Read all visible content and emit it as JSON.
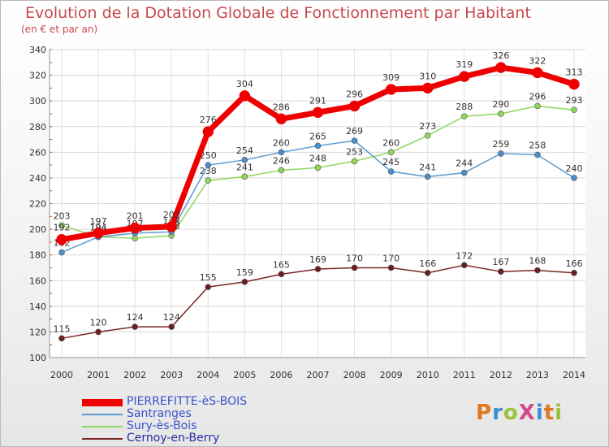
{
  "title": "Evolution de la Dotation Globale de Fonctionnement par Habitant",
  "subtitle": "(en € et par an)",
  "logo": {
    "text": "ProXiti",
    "colors": [
      "#e07820",
      "#3a8fd0",
      "#9bc03c",
      "#d04a8c",
      "#3a8fd0",
      "#e07820",
      "#9bc03c"
    ]
  },
  "chart_data": {
    "type": "line",
    "x": [
      2000,
      2001,
      2002,
      2003,
      2004,
      2005,
      2006,
      2007,
      2008,
      2009,
      2010,
      2011,
      2012,
      2013,
      2014
    ],
    "ylim": [
      100,
      340
    ],
    "yticks": [
      100,
      120,
      140,
      160,
      180,
      200,
      220,
      240,
      260,
      280,
      300,
      320,
      340
    ],
    "grid": true,
    "legend": "bottom-left",
    "series": [
      {
        "name": "Cernoy-en-Berry",
        "color": "#7b2525",
        "values": [
          115,
          120,
          124,
          124,
          155,
          159,
          165,
          169,
          170,
          170,
          166,
          172,
          167,
          168,
          166
        ]
      },
      {
        "name": "Sury-ès-Bois",
        "color": "#8fd65c",
        "values": [
          203,
          194,
          193,
          195,
          238,
          241,
          246,
          248,
          253,
          260,
          273,
          288,
          290,
          296,
          293
        ]
      },
      {
        "name": "Santranges",
        "color": "#5b9bd0",
        "values": [
          182,
          194,
          197,
          198,
          250,
          254,
          260,
          265,
          269,
          245,
          241,
          244,
          259,
          258,
          240
        ]
      },
      {
        "name": "PIERREFITTE-èS-BOIS",
        "color": "#ee0000",
        "values": [
          192,
          197,
          201,
          202,
          276,
          304,
          286,
          291,
          296,
          309,
          310,
          319,
          326,
          322,
          313
        ]
      }
    ],
    "legend_order": [
      "PIERREFITTE-èS-BOIS",
      "Santranges",
      "Sury-ès-Bois",
      "Cernoy-en-Berry"
    ]
  }
}
